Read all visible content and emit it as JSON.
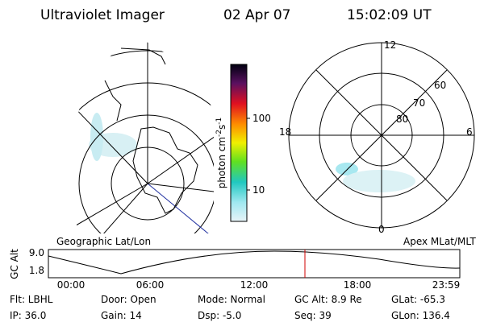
{
  "header": {
    "title": "Ultraviolet Imager",
    "date": "02 Apr 07",
    "time": "15:02:09 UT"
  },
  "colorbar": {
    "label": {
      "base": "photon cm",
      "exp1": "-2",
      "mid": "s",
      "exp2": "-1"
    },
    "ticks": [
      "100",
      "10"
    ]
  },
  "polar": {
    "mlt_labels": [
      "12",
      "18",
      "6",
      "0"
    ],
    "mlat_labels": [
      "60",
      "70",
      "80"
    ]
  },
  "panel_labels": {
    "left": "Geographic Lat/Lon",
    "right": "Apex MLat/MLT"
  },
  "altitude_strip": {
    "axis_label": "GC Alt",
    "yticks": [
      "9.0",
      "1.8"
    ],
    "xticks": [
      "00:00",
      "06:00",
      "12:00",
      "18:00",
      "23:59"
    ]
  },
  "footer": {
    "rows": [
      [
        "Flt: LBHL",
        "Door: Open",
        "Mode: Normal",
        "GC Alt: 8.9 Re",
        "GLat: -65.3"
      ],
      [
        "IP: 36.0",
        "Gain: 14",
        "Dsp: -5.0",
        "Seq: 39",
        "GLon: 136.4"
      ]
    ]
  }
}
